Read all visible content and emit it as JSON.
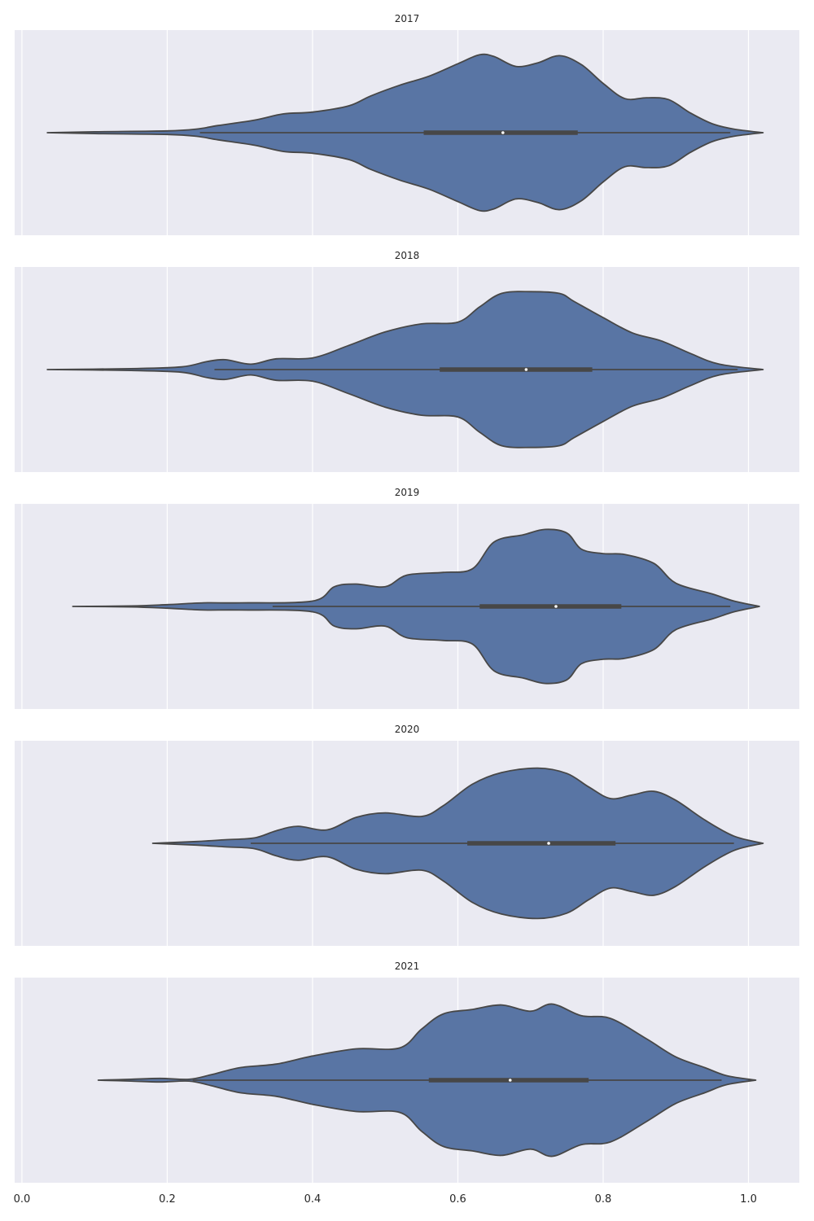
{
  "chart_data": {
    "type": "violin",
    "xlim": [
      -0.01,
      1.07
    ],
    "x_ticks": [
      "0.0",
      "0.2",
      "0.4",
      "0.6",
      "0.8",
      "1.0"
    ],
    "grid": true,
    "body_color": "#5975a4",
    "edge_color": "#474747",
    "background_color": "#eaeaf2",
    "panels": [
      {
        "title": "2017",
        "density": [
          [
            0.035,
            0.0
          ],
          [
            0.1,
            0.01
          ],
          [
            0.2,
            0.02
          ],
          [
            0.24,
            0.04
          ],
          [
            0.27,
            0.08
          ],
          [
            0.32,
            0.14
          ],
          [
            0.36,
            0.21
          ],
          [
            0.4,
            0.23
          ],
          [
            0.45,
            0.3
          ],
          [
            0.48,
            0.41
          ],
          [
            0.52,
            0.53
          ],
          [
            0.56,
            0.63
          ],
          [
            0.6,
            0.77
          ],
          [
            0.63,
            0.87
          ],
          [
            0.65,
            0.85
          ],
          [
            0.68,
            0.74
          ],
          [
            0.71,
            0.78
          ],
          [
            0.74,
            0.86
          ],
          [
            0.77,
            0.76
          ],
          [
            0.8,
            0.55
          ],
          [
            0.83,
            0.38
          ],
          [
            0.86,
            0.39
          ],
          [
            0.89,
            0.37
          ],
          [
            0.92,
            0.22
          ],
          [
            0.95,
            0.1
          ],
          [
            0.98,
            0.04
          ],
          [
            1.02,
            0.0
          ]
        ],
        "whisker": [
          0.245,
          0.975
        ],
        "q1": 0.553,
        "median": 0.662,
        "q3": 0.765
      },
      {
        "title": "2018",
        "density": [
          [
            0.035,
            0.0
          ],
          [
            0.15,
            0.01
          ],
          [
            0.22,
            0.03
          ],
          [
            0.255,
            0.09
          ],
          [
            0.28,
            0.11
          ],
          [
            0.315,
            0.06
          ],
          [
            0.35,
            0.12
          ],
          [
            0.4,
            0.13
          ],
          [
            0.45,
            0.27
          ],
          [
            0.5,
            0.42
          ],
          [
            0.55,
            0.51
          ],
          [
            0.6,
            0.53
          ],
          [
            0.63,
            0.7
          ],
          [
            0.66,
            0.85
          ],
          [
            0.7,
            0.87
          ],
          [
            0.74,
            0.85
          ],
          [
            0.76,
            0.76
          ],
          [
            0.8,
            0.58
          ],
          [
            0.84,
            0.41
          ],
          [
            0.88,
            0.32
          ],
          [
            0.92,
            0.18
          ],
          [
            0.96,
            0.06
          ],
          [
            1.02,
            0.0
          ]
        ],
        "whisker": [
          0.265,
          0.985
        ],
        "q1": 0.575,
        "median": 0.694,
        "q3": 0.785
      },
      {
        "title": "2019",
        "density": [
          [
            0.07,
            0.0
          ],
          [
            0.15,
            0.005
          ],
          [
            0.2,
            0.02
          ],
          [
            0.25,
            0.04
          ],
          [
            0.3,
            0.04
          ],
          [
            0.4,
            0.06
          ],
          [
            0.43,
            0.22
          ],
          [
            0.46,
            0.25
          ],
          [
            0.5,
            0.22
          ],
          [
            0.53,
            0.35
          ],
          [
            0.58,
            0.38
          ],
          [
            0.62,
            0.42
          ],
          [
            0.65,
            0.72
          ],
          [
            0.69,
            0.8
          ],
          [
            0.72,
            0.86
          ],
          [
            0.75,
            0.82
          ],
          [
            0.77,
            0.64
          ],
          [
            0.8,
            0.59
          ],
          [
            0.83,
            0.58
          ],
          [
            0.87,
            0.48
          ],
          [
            0.9,
            0.26
          ],
          [
            0.95,
            0.14
          ],
          [
            0.98,
            0.06
          ],
          [
            1.015,
            0.0
          ]
        ],
        "whisker": [
          0.345,
          0.975
        ],
        "q1": 0.63,
        "median": 0.735,
        "q3": 0.825
      },
      {
        "title": "2020",
        "density": [
          [
            0.18,
            0.0
          ],
          [
            0.24,
            0.02
          ],
          [
            0.28,
            0.04
          ],
          [
            0.32,
            0.06
          ],
          [
            0.35,
            0.14
          ],
          [
            0.38,
            0.19
          ],
          [
            0.42,
            0.15
          ],
          [
            0.46,
            0.29
          ],
          [
            0.5,
            0.34
          ],
          [
            0.55,
            0.3
          ],
          [
            0.58,
            0.42
          ],
          [
            0.62,
            0.66
          ],
          [
            0.66,
            0.79
          ],
          [
            0.71,
            0.84
          ],
          [
            0.75,
            0.78
          ],
          [
            0.78,
            0.63
          ],
          [
            0.81,
            0.5
          ],
          [
            0.84,
            0.54
          ],
          [
            0.87,
            0.58
          ],
          [
            0.9,
            0.48
          ],
          [
            0.94,
            0.26
          ],
          [
            0.98,
            0.08
          ],
          [
            1.02,
            0.0
          ]
        ],
        "whisker": [
          0.315,
          0.98
        ],
        "q1": 0.613,
        "median": 0.725,
        "q3": 0.817
      },
      {
        "title": "2021",
        "density": [
          [
            0.105,
            0.0
          ],
          [
            0.15,
            0.01
          ],
          [
            0.19,
            0.02
          ],
          [
            0.23,
            0.01
          ],
          [
            0.26,
            0.06
          ],
          [
            0.3,
            0.14
          ],
          [
            0.35,
            0.18
          ],
          [
            0.4,
            0.27
          ],
          [
            0.46,
            0.35
          ],
          [
            0.52,
            0.36
          ],
          [
            0.55,
            0.57
          ],
          [
            0.58,
            0.74
          ],
          [
            0.62,
            0.79
          ],
          [
            0.66,
            0.84
          ],
          [
            0.7,
            0.77
          ],
          [
            0.73,
            0.85
          ],
          [
            0.77,
            0.72
          ],
          [
            0.81,
            0.69
          ],
          [
            0.86,
            0.46
          ],
          [
            0.9,
            0.26
          ],
          [
            0.94,
            0.14
          ],
          [
            0.97,
            0.05
          ],
          [
            1.01,
            0.0
          ]
        ],
        "whisker": [
          0.235,
          0.963
        ],
        "q1": 0.56,
        "median": 0.672,
        "q3": 0.78
      }
    ]
  }
}
